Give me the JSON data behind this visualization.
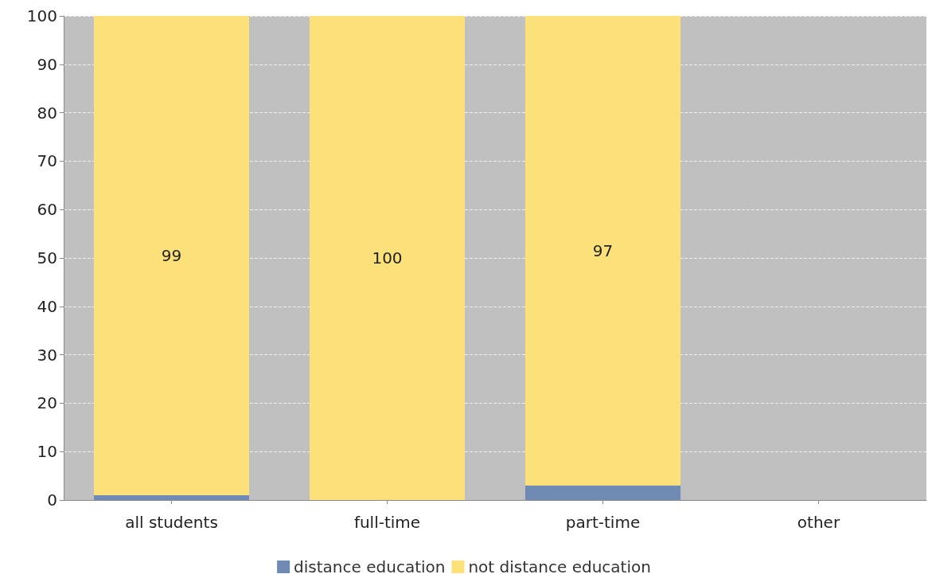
{
  "chart_data": {
    "type": "bar",
    "stacked": true,
    "categories": [
      "all students",
      "full-time",
      "part-time",
      "other"
    ],
    "series": [
      {
        "name": "distance education",
        "color": "#6f8ab3",
        "values": [
          1,
          0,
          3,
          null
        ]
      },
      {
        "name": "not distance education",
        "color": "#fce17a",
        "values": [
          99,
          100,
          97,
          null
        ],
        "value_labels": [
          "99",
          "100",
          "97",
          null
        ]
      }
    ],
    "ylim": [
      0,
      100
    ],
    "yticks": [
      0,
      10,
      20,
      30,
      40,
      50,
      60,
      70,
      80,
      90,
      100
    ],
    "grid": "y",
    "legend": "bottom"
  }
}
